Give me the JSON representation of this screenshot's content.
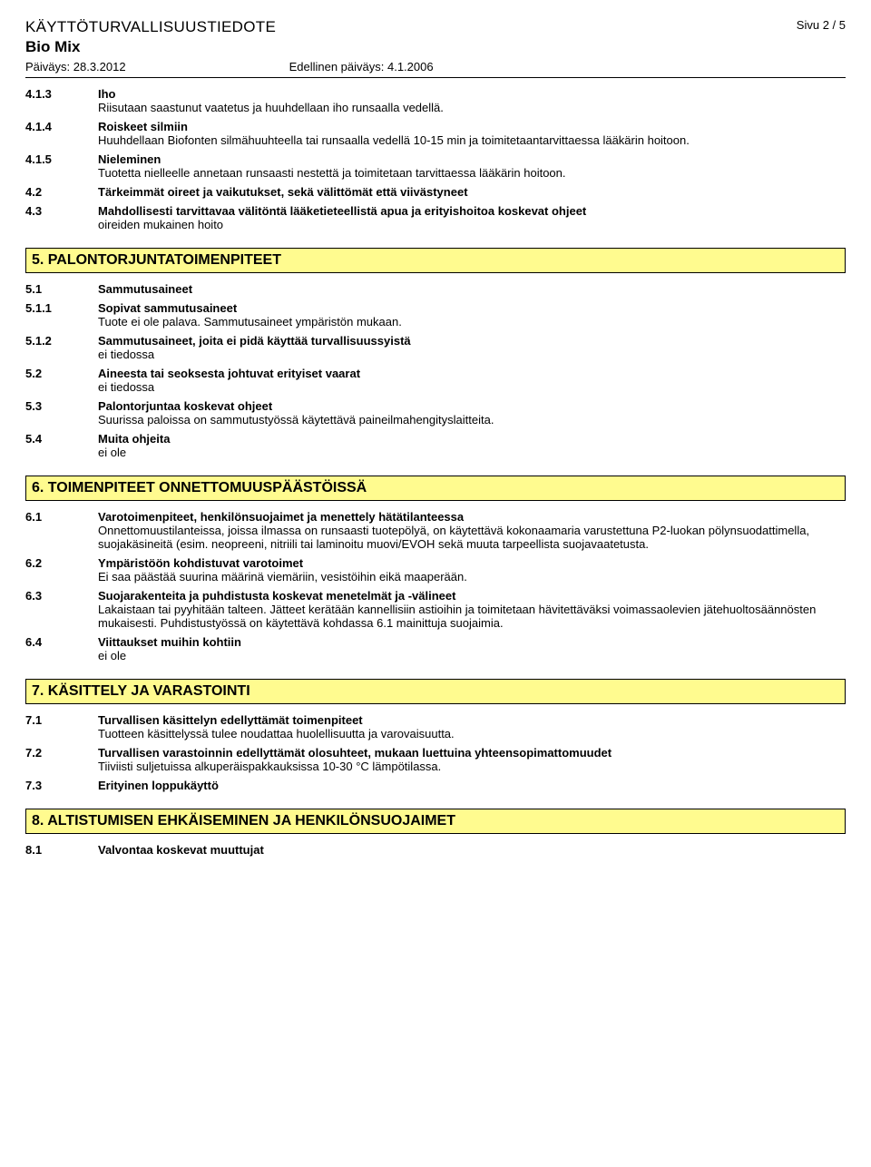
{
  "header": {
    "doc_title": "KÄYTTÖTURVALLISUUSTIEDOTE",
    "product": "Bio Mix",
    "page": "Sivu 2 / 5",
    "date_label": "Päiväys: 28.3.2012",
    "prev_date_label": "Edellinen päiväys: 4.1.2006"
  },
  "s4": {
    "i413": {
      "num": "4.1.3",
      "label": "Iho",
      "text": "Riisutaan saastunut vaatetus ja huuhdellaan iho runsaalla vedellä."
    },
    "i414": {
      "num": "4.1.4",
      "label": "Roiskeet silmiin",
      "text": "Huuhdellaan Biofonten silmähuuhteella tai runsaalla vedellä 10-15 min ja toimitetaantarvittaessa lääkärin hoitoon."
    },
    "i415": {
      "num": "4.1.5",
      "label": "Nieleminen",
      "text": "Tuotetta nielleelle annetaan runsaasti nestettä ja toimitetaan tarvittaessa lääkärin hoitoon."
    },
    "i42": {
      "num": "4.2",
      "label": "Tärkeimmät oireet ja vaikutukset, sekä välittömät että viivästyneet"
    },
    "i43": {
      "num": "4.3",
      "label": "Mahdollisesti tarvittavaa välitöntä lääketieteellistä apua ja erityishoitoa koskevat ohjeet",
      "text": "oireiden mukainen hoito"
    }
  },
  "sec5": {
    "title": "5. PALONTORJUNTATOIMENPITEET",
    "i51": {
      "num": "5.1",
      "label": "Sammutusaineet"
    },
    "i511": {
      "num": "5.1.1",
      "label": "Sopivat sammutusaineet",
      "text": "Tuote ei ole palava. Sammutusaineet ympäristön mukaan."
    },
    "i512": {
      "num": "5.1.2",
      "label": "Sammutusaineet, joita ei pidä käyttää turvallisuussyistä",
      "text": "ei tiedossa"
    },
    "i52": {
      "num": "5.2",
      "label": "Aineesta tai seoksesta johtuvat erityiset vaarat",
      "text": "ei tiedossa"
    },
    "i53": {
      "num": "5.3",
      "label": "Palontorjuntaa koskevat ohjeet",
      "text": "Suurissa paloissa on sammutustyössä käytettävä paineilmahengityslaitteita."
    },
    "i54": {
      "num": "5.4",
      "label": "Muita ohjeita",
      "text": "ei ole"
    }
  },
  "sec6": {
    "title": "6. TOIMENPITEET ONNETTOMUUSPÄÄSTÖISSÄ",
    "i61": {
      "num": "6.1",
      "label": "Varotoimenpiteet, henkilönsuojaimet ja menettely hätätilanteessa",
      "text": "Onnettomuustilanteissa, joissa ilmassa on runsaasti tuotepölyä, on käytettävä kokonaamaria varustettuna P2-luokan pölynsuodattimella, suojakäsineitä (esim. neopreeni, nitriili tai laminoitu muovi/EVOH sekä muuta tarpeellista suojavaatetusta."
    },
    "i62": {
      "num": "6.2",
      "label": "Ympäristöön kohdistuvat varotoimet",
      "text": "Ei saa päästää suurina määrinä viemäriin, vesistöihin eikä maaperään."
    },
    "i63": {
      "num": "6.3",
      "label": "Suojarakenteita ja puhdistusta koskevat menetelmät ja -välineet",
      "text": "Lakaistaan tai pyyhitään talteen. Jätteet kerätään kannellisiin astioihin ja toimitetaan hävitettäväksi voimassaolevien jätehuoltosäännösten mukaisesti. Puhdistustyössä on käytettävä kohdassa 6.1 mainittuja suojaimia."
    },
    "i64": {
      "num": "6.4",
      "label": "Viittaukset muihin kohtiin",
      "text": "ei ole"
    }
  },
  "sec7": {
    "title": "7. KÄSITTELY JA VARASTOINTI",
    "i71": {
      "num": "7.1",
      "label": "Turvallisen käsittelyn edellyttämät toimenpiteet",
      "text": "Tuotteen käsittelyssä tulee noudattaa huolellisuutta ja varovaisuutta."
    },
    "i72": {
      "num": "7.2",
      "label": "Turvallisen varastoinnin edellyttämät olosuhteet, mukaan luettuina yhteensopimattomuudet",
      "text": "Tiiviisti suljetuissa alkuperäispakkauksissa 10-30 °C lämpötilassa."
    },
    "i73": {
      "num": "7.3",
      "label": "Erityinen loppukäyttö"
    }
  },
  "sec8": {
    "title": "8. ALTISTUMISEN EHKÄISEMINEN JA HENKILÖNSUOJAIMET",
    "i81": {
      "num": "8.1",
      "label": "Valvontaa koskevat muuttujat"
    }
  }
}
